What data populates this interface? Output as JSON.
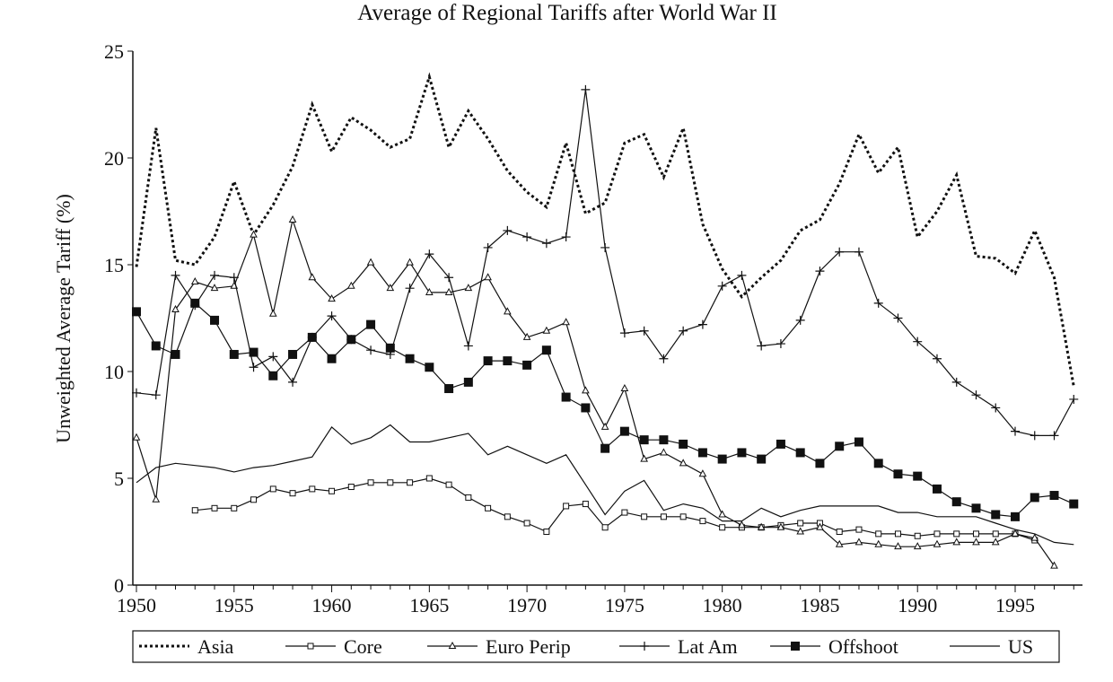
{
  "chart_data": {
    "type": "line",
    "title": "Average of Regional Tariffs after World War II",
    "xlabel": "",
    "ylabel": "Unweighted Average Tariff (%)",
    "xlim": [
      1950,
      1998
    ],
    "ylim": [
      0,
      25
    ],
    "x_ticks": [
      1950,
      1955,
      1960,
      1965,
      1970,
      1975,
      1980,
      1985,
      1990,
      1995
    ],
    "y_ticks": [
      0,
      5,
      10,
      15,
      20,
      25
    ],
    "grid": false,
    "legend_position": "bottom",
    "series": [
      {
        "name": "Asia",
        "start": 1950,
        "style": "dotted",
        "values": [
          14.9,
          21.4,
          15.2,
          15.0,
          16.3,
          18.9,
          16.4,
          17.8,
          19.6,
          22.5,
          20.3,
          21.9,
          21.3,
          20.5,
          20.9,
          23.8,
          20.5,
          22.2,
          20.9,
          19.4,
          18.4,
          17.7,
          20.7,
          17.4,
          17.9,
          20.7,
          21.1,
          19.1,
          21.4,
          16.9,
          14.8,
          13.5,
          14.4,
          15.2,
          16.6,
          17.1,
          18.8,
          21.1,
          19.3,
          20.5,
          16.3,
          17.5,
          19.2,
          15.4,
          15.3,
          14.6,
          16.6,
          14.4,
          9.3
        ]
      },
      {
        "name": "Core",
        "start": 1953,
        "style": "open-square",
        "values": [
          3.5,
          3.6,
          3.6,
          4.0,
          4.5,
          4.3,
          4.5,
          4.4,
          4.6,
          4.8,
          4.8,
          4.8,
          5.0,
          4.7,
          4.1,
          3.6,
          3.2,
          2.9,
          2.5,
          3.7,
          3.8,
          2.7,
          3.4,
          3.2,
          3.2,
          3.2,
          3.0,
          2.7,
          2.7,
          2.7,
          2.8,
          2.9,
          2.9,
          2.5,
          2.6,
          2.4,
          2.4,
          2.3,
          2.4,
          2.4,
          2.4,
          2.4,
          2.4,
          2.1
        ]
      },
      {
        "name": "Euro Perip",
        "start": 1950,
        "style": "triangle",
        "values": [
          6.9,
          4.0,
          12.9,
          14.2,
          13.9,
          14.0,
          16.4,
          12.7,
          17.1,
          14.4,
          13.4,
          14.0,
          15.1,
          13.9,
          15.1,
          13.7,
          13.7,
          13.9,
          14.4,
          12.8,
          11.6,
          11.9,
          12.3,
          9.1,
          7.4,
          9.2,
          5.9,
          6.2,
          5.7,
          5.2,
          3.3,
          2.8,
          2.7,
          2.7,
          2.5,
          2.7,
          1.9,
          2.0,
          1.9,
          1.8,
          1.8,
          1.9,
          2.0,
          2.0,
          2.0,
          2.4,
          2.2,
          0.9
        ]
      },
      {
        "name": "Lat Am",
        "start": 1950,
        "style": "plus",
        "values": [
          9.0,
          8.9,
          14.5,
          13.1,
          14.5,
          14.4,
          10.2,
          10.7,
          9.5,
          11.6,
          12.6,
          11.5,
          11.0,
          10.8,
          13.9,
          15.5,
          14.4,
          11.2,
          15.8,
          16.6,
          16.3,
          16.0,
          16.3,
          23.2,
          15.8,
          11.8,
          11.9,
          10.6,
          11.9,
          12.2,
          14.0,
          14.5,
          11.2,
          11.3,
          12.4,
          14.7,
          15.6,
          15.6,
          13.2,
          12.5,
          11.4,
          10.6,
          9.5,
          8.9,
          8.3,
          7.2,
          7.0,
          7.0,
          8.7
        ]
      },
      {
        "name": "Offshoot",
        "start": 1950,
        "style": "filled-square",
        "values": [
          12.8,
          11.2,
          10.8,
          13.2,
          12.4,
          10.8,
          10.9,
          9.8,
          10.8,
          11.6,
          10.6,
          11.5,
          12.2,
          11.1,
          10.6,
          10.2,
          9.2,
          9.5,
          10.5,
          10.5,
          10.3,
          11.0,
          8.8,
          8.3,
          6.4,
          7.2,
          6.8,
          6.8,
          6.6,
          6.2,
          5.9,
          6.2,
          5.9,
          6.6,
          6.2,
          5.7,
          6.5,
          6.7,
          5.7,
          5.2,
          5.1,
          4.5,
          3.9,
          3.6,
          3.3,
          3.2,
          4.1,
          4.2,
          3.8
        ]
      },
      {
        "name": "US",
        "start": 1950,
        "style": "plain",
        "values": [
          4.8,
          5.5,
          5.7,
          5.6,
          5.5,
          5.3,
          5.5,
          5.6,
          5.8,
          6.0,
          7.4,
          6.6,
          6.9,
          7.5,
          6.7,
          6.7,
          6.9,
          7.1,
          6.1,
          6.5,
          6.1,
          5.7,
          6.1,
          4.7,
          3.3,
          4.4,
          4.9,
          3.5,
          3.8,
          3.6,
          3.0,
          3.0,
          3.6,
          3.2,
          3.5,
          3.7,
          3.7,
          3.7,
          3.7,
          3.4,
          3.4,
          3.2,
          3.2,
          3.2,
          2.9,
          2.6,
          2.4,
          2.0,
          1.9
        ]
      }
    ]
  }
}
